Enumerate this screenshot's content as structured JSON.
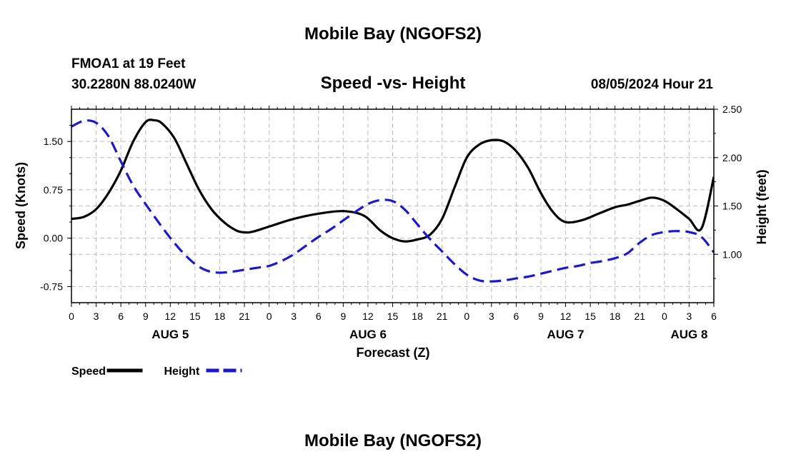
{
  "header": {
    "title": "Mobile Bay (NGOFS2)",
    "station": "FMOA1 at 19 Feet",
    "coords": "30.2280N  88.0240W",
    "subtitle": "Speed -vs- Height",
    "datetime": "08/05/2024 Hour 21",
    "footer_title": "Mobile Bay (NGOFS2)"
  },
  "chart_data": {
    "type": "line",
    "title": "Speed -vs- Height",
    "xlabel": "Forecast (Z)",
    "ylabel_left": "Speed (Knots)",
    "ylabel_right": "Height (feet)",
    "x_unit": "hours from AUG 5 00Z",
    "xlim": [
      0,
      78
    ],
    "ylim_left": [
      -1.0,
      2.0
    ],
    "ylim_right": [
      0.5,
      2.5
    ],
    "x_ticks": [
      0,
      3,
      6,
      9,
      12,
      15,
      18,
      21,
      24,
      27,
      30,
      33,
      36,
      39,
      42,
      45,
      48,
      51,
      54,
      57,
      60,
      63,
      66,
      69,
      72,
      75,
      78
    ],
    "x_tick_labels": [
      "0",
      "3",
      "6",
      "9",
      "12",
      "15",
      "18",
      "21",
      "0",
      "3",
      "6",
      "9",
      "12",
      "15",
      "18",
      "21",
      "0",
      "3",
      "6",
      "9",
      "12",
      "15",
      "18",
      "21",
      "0",
      "3",
      "6"
    ],
    "date_labels": [
      {
        "x": 12,
        "label": "AUG 5"
      },
      {
        "x": 36,
        "label": "AUG 6"
      },
      {
        "x": 60,
        "label": "AUG 7"
      },
      {
        "x": 75,
        "label": "AUG 8"
      }
    ],
    "y_ticks_left": [
      -0.75,
      0.0,
      0.75,
      1.5
    ],
    "y_tick_labels_left": [
      "-0.75",
      "0.00",
      "0.75",
      "1.50"
    ],
    "y_ticks_right": [
      1.0,
      1.5,
      2.0,
      2.5
    ],
    "y_tick_labels_right": [
      "1.00",
      "1.50",
      "2.00",
      "2.50"
    ],
    "grid": true,
    "legend": "bottom-left",
    "series": [
      {
        "name": "Speed",
        "axis": "left",
        "color": "#000000",
        "dash": "solid",
        "x": [
          0,
          1.5,
          3,
          4.5,
          6,
          7.5,
          9,
          10,
          11,
          12.5,
          14,
          15.5,
          17,
          18.5,
          20,
          21,
          22,
          24,
          27,
          30,
          33,
          35.5,
          37.5,
          39,
          40.5,
          42,
          43.5,
          45,
          46.5,
          48,
          49.5,
          51,
          52.5,
          54,
          55.5,
          57,
          58.5,
          60,
          62,
          64,
          66,
          67.5,
          69,
          70.5,
          72,
          73.5,
          75,
          76.5,
          78
        ],
        "y": [
          0.3,
          0.33,
          0.45,
          0.7,
          1.05,
          1.5,
          1.8,
          1.83,
          1.78,
          1.55,
          1.15,
          0.75,
          0.45,
          0.25,
          0.12,
          0.09,
          0.1,
          0.18,
          0.3,
          0.38,
          0.42,
          0.35,
          0.12,
          0.0,
          -0.05,
          -0.02,
          0.05,
          0.3,
          0.78,
          1.25,
          1.45,
          1.52,
          1.5,
          1.35,
          1.08,
          0.7,
          0.4,
          0.25,
          0.28,
          0.38,
          0.48,
          0.52,
          0.58,
          0.63,
          0.58,
          0.45,
          0.3,
          0.15,
          0.95
        ]
      },
      {
        "name": "Height",
        "axis": "right",
        "color": "#1a1acc",
        "dash": "dashed",
        "x": [
          0,
          1.5,
          3,
          4.5,
          6,
          7.5,
          9,
          10.5,
          12,
          13.5,
          15,
          16.5,
          18,
          19.5,
          21,
          22.5,
          24,
          25.5,
          27,
          28.5,
          30,
          31.5,
          33,
          34.5,
          36,
          37.5,
          39,
          40.5,
          42,
          43.5,
          45,
          46.5,
          48,
          49.5,
          51,
          52.5,
          54,
          55.5,
          57,
          58.5,
          60,
          61.5,
          63,
          64.5,
          66,
          67.5,
          69,
          70.5,
          72,
          73.5,
          75,
          76.5,
          78
        ],
        "y": [
          2.32,
          2.38,
          2.36,
          2.22,
          1.96,
          1.71,
          1.52,
          1.34,
          1.17,
          1.02,
          0.9,
          0.83,
          0.81,
          0.82,
          0.84,
          0.86,
          0.88,
          0.93,
          1.0,
          1.09,
          1.18,
          1.26,
          1.35,
          1.44,
          1.52,
          1.56,
          1.55,
          1.46,
          1.31,
          1.16,
          1.03,
          0.9,
          0.79,
          0.73,
          0.72,
          0.73,
          0.75,
          0.77,
          0.8,
          0.83,
          0.86,
          0.88,
          0.91,
          0.93,
          0.96,
          1.01,
          1.12,
          1.2,
          1.23,
          1.24,
          1.23,
          1.18,
          1.02
        ]
      }
    ]
  }
}
